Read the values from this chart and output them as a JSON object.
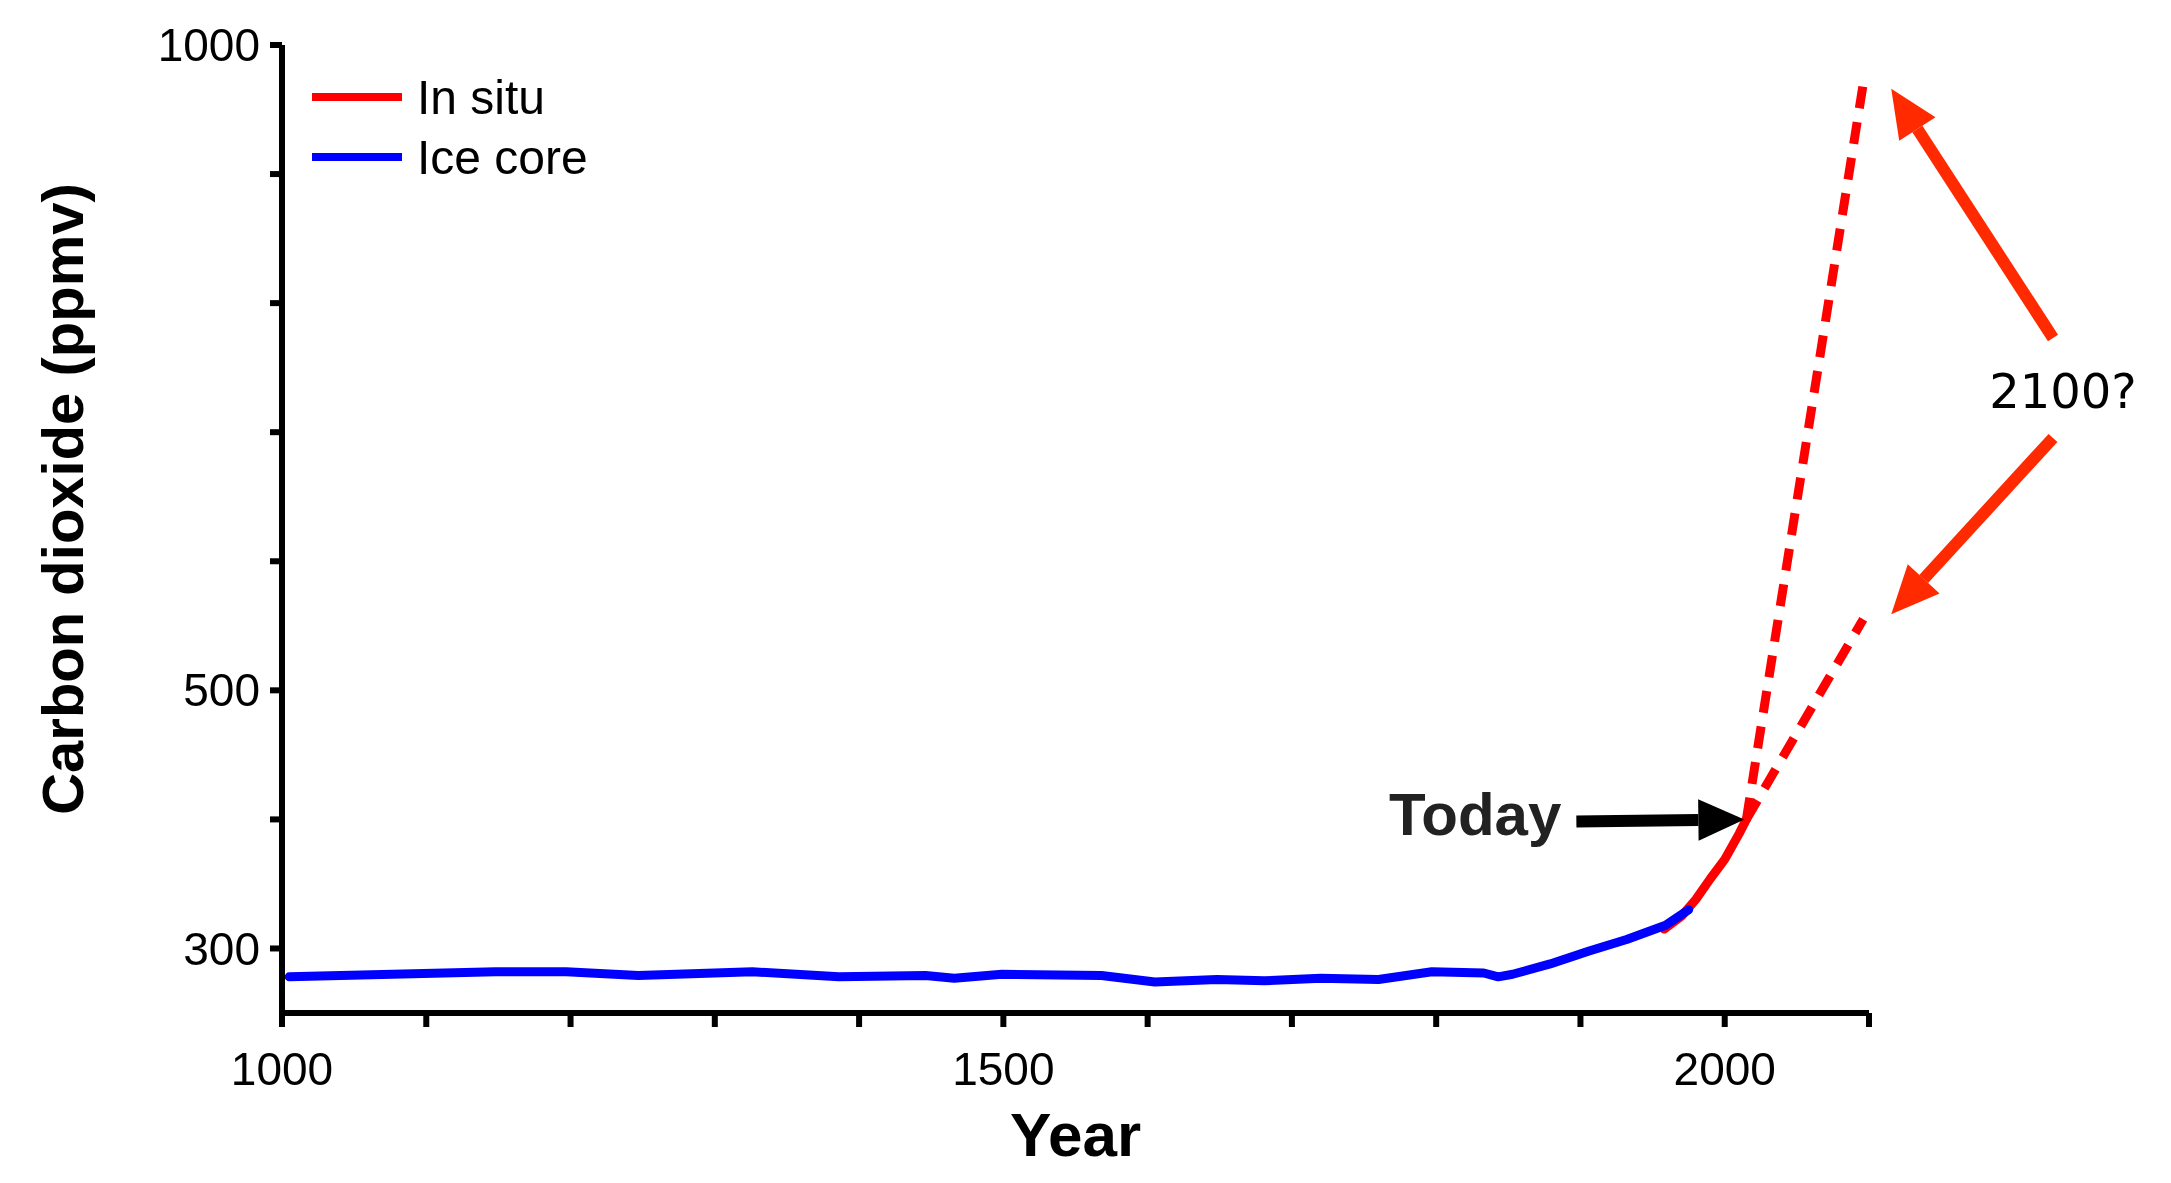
{
  "chart_data": {
    "type": "line",
    "xlabel": "Year",
    "ylabel": "Carbon dioxide (ppmv)",
    "xlim": [
      1000,
      2100
    ],
    "ylim": [
      250,
      1000
    ],
    "xticks": [
      1000,
      {
        "value": 1100,
        "label": null
      },
      {
        "value": 1200,
        "label": null
      },
      {
        "value": 1300,
        "label": null
      },
      {
        "value": 1400,
        "label": null
      },
      1500,
      {
        "value": 1600,
        "label": null
      },
      {
        "value": 1700,
        "label": null
      },
      {
        "value": 1800,
        "label": null
      },
      {
        "value": 1900,
        "label": null
      },
      2000,
      {
        "value": 2100,
        "label": null
      }
    ],
    "yticks": [
      300,
      {
        "value": 400,
        "label": null
      },
      500,
      {
        "value": 600,
        "label": null
      },
      {
        "value": 700,
        "label": null
      },
      {
        "value": 800,
        "label": null
      },
      {
        "value": 900,
        "label": null
      },
      1000
    ],
    "legend": "top left",
    "grid": false,
    "series": [
      {
        "name": "In situ",
        "color": "#ff0000",
        "x": [
          1958,
          1970,
          1980,
          1990,
          2000,
          2010,
          2015
        ],
        "values": [
          315,
          325,
          338,
          354,
          369,
          389,
          400
        ]
      },
      {
        "name": "Ice core",
        "color": "#0000ff",
        "x": [
          1005,
          1148,
          1197,
          1247,
          1326,
          1386,
          1446,
          1466,
          1499,
          1568,
          1605,
          1648,
          1681,
          1720,
          1760,
          1797,
          1833,
          1843,
          1853,
          1879,
          1906,
          1932,
          1959,
          1975
        ],
        "values": [
          278,
          282,
          282,
          279,
          282,
          278,
          279,
          277,
          280,
          279,
          274,
          276,
          275,
          277,
          276,
          282,
          281,
          278,
          280,
          288,
          298,
          307,
          318,
          330
        ]
      },
      {
        "color": "#ff0000",
        "line_style": "dashed",
        "x": [
          2015,
          2096
        ],
        "values": [
          400,
          970
        ]
      },
      {
        "color": "#ff0000",
        "line_style": "dashed",
        "x": [
          2015,
          2096
        ],
        "values": [
          400,
          555
        ]
      }
    ],
    "annotations": [
      "Today",
      "2100?"
    ]
  }
}
